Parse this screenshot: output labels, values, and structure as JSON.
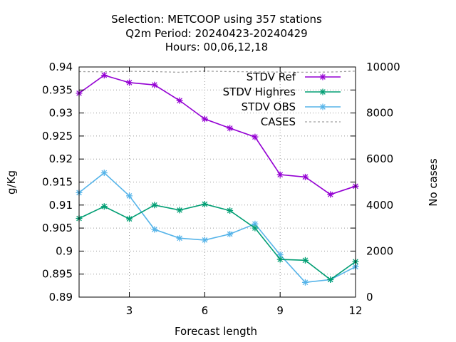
{
  "chart_data": {
    "type": "line",
    "title_lines": [
      "Selection: METCOOP using   357 stations",
      "Q2m   Period: 20240423-20240429",
      "Hours:  00,06,12,18"
    ],
    "xlabel": "Forecast length",
    "ylabel": "g/Kg",
    "y2label": "No cases",
    "xlim": [
      1,
      12
    ],
    "ylim": [
      0.89,
      0.94
    ],
    "y2lim": [
      0,
      10000
    ],
    "x_ticks": [
      "3",
      "6",
      "9",
      "12"
    ],
    "y_ticks": [
      "0.89",
      "0.895",
      "0.9",
      "0.905",
      "0.91",
      "0.915",
      "0.92",
      "0.925",
      "0.93",
      "0.935",
      "0.94"
    ],
    "y2_ticks": [
      "0",
      "2000",
      "4000",
      "6000",
      "8000",
      "10000"
    ],
    "grid": true,
    "legend_position": "top-right",
    "x": [
      1,
      2,
      3,
      4,
      5,
      6,
      7,
      8,
      9,
      10,
      11,
      12
    ],
    "series": [
      {
        "name": "STDV Ref",
        "axis": "y",
        "color": "#9400d3",
        "marker": "star",
        "dash": "solid",
        "values": [
          0.9343,
          0.9382,
          0.9366,
          0.9361,
          0.9327,
          0.9287,
          0.9267,
          0.9248,
          0.9166,
          0.9161,
          0.9123,
          0.9141
        ]
      },
      {
        "name": "STDV Highres",
        "axis": "y",
        "color": "#009e73",
        "marker": "star",
        "dash": "solid",
        "values": [
          0.9071,
          0.9097,
          0.907,
          0.91,
          0.9089,
          0.9102,
          0.9088,
          0.905,
          0.8982,
          0.898,
          0.8938,
          0.8977
        ]
      },
      {
        "name": "STDV OBS",
        "axis": "y",
        "color": "#56b4e9",
        "marker": "star",
        "dash": "solid",
        "values": [
          0.9127,
          0.917,
          0.912,
          0.9047,
          0.9028,
          0.9024,
          0.9037,
          0.9059,
          0.8992,
          0.8932,
          0.8938,
          0.8966
        ]
      },
      {
        "name": "CASES",
        "axis": "y2",
        "color": "#a0a0a0",
        "marker": "none",
        "dash": "dashed",
        "values": [
          9800,
          9790,
          9810,
          9800,
          9770,
          9820,
          9800,
          9790,
          9780,
          9770,
          9780,
          9820
        ]
      }
    ]
  }
}
